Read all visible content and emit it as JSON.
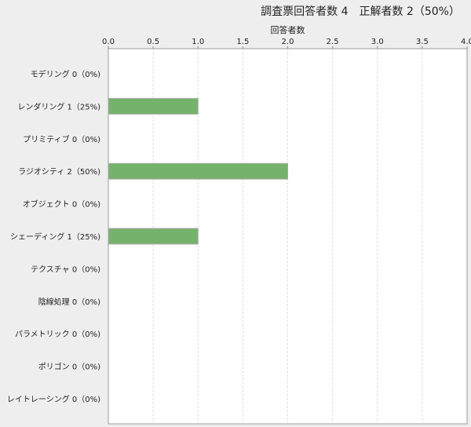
{
  "chart_data": {
    "type": "bar",
    "orientation": "horizontal",
    "title": "調査票回答者数 4　正解者数 2（50%）",
    "xlabel": "回答者数",
    "xlim": [
      0,
      4
    ],
    "xticks": [
      "0.0",
      "0.5",
      "1.0",
      "1.5",
      "2.0",
      "2.5",
      "3.0",
      "3.5",
      "4.0"
    ],
    "grid": true,
    "bar_color": "#75b26b",
    "categories": [
      "モデリング 0（0%)",
      "レンダリング 1（25%)",
      "プリミティブ 0（0%)",
      "ラジオシティ 2（50%)",
      "オブジェクト 0（0%)",
      "シェーディング 1（25%)",
      "テクスチャ 0（0%)",
      "陰線処理 0（0%)",
      "パラメトリック 0（0%)",
      "ポリゴン 0（0%)",
      "レイトレーシング 0（0%)"
    ],
    "values": [
      0,
      1,
      0,
      2,
      0,
      1,
      0,
      0,
      0,
      0,
      0
    ]
  }
}
